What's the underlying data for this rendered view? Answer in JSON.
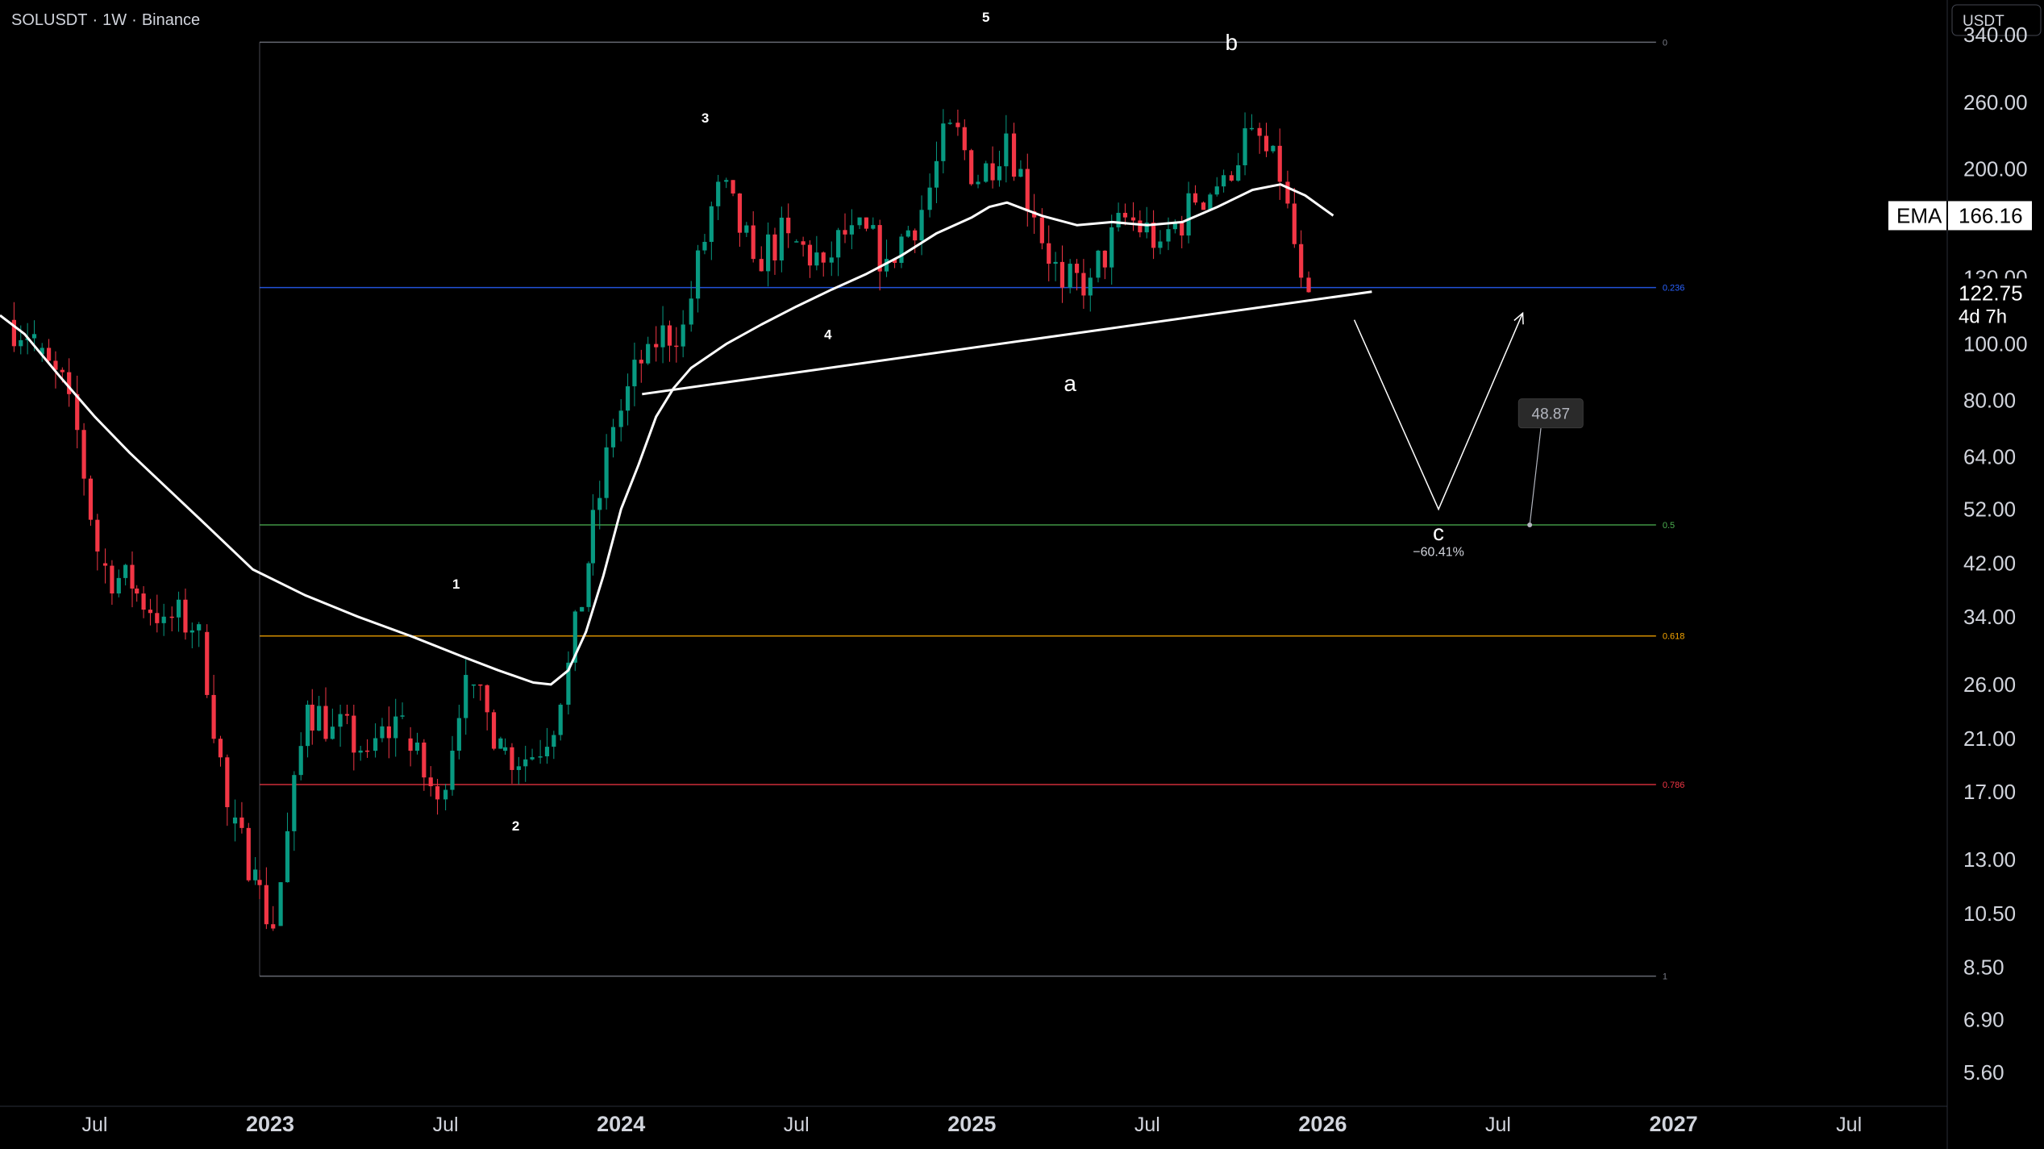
{
  "header": {
    "symbol": "SOLUSDT",
    "interval": "1W",
    "exchange": "Binance",
    "sep": "·"
  },
  "price_axis": {
    "currency": "USDT",
    "ticks": [
      "340.00",
      "260.00",
      "200.00",
      "130.00",
      "100.00",
      "80.00",
      "64.00",
      "52.00",
      "42.00",
      "34.00",
      "26.00",
      "21.00",
      "17.00",
      "13.00",
      "10.50",
      "8.50",
      "6.90",
      "5.60"
    ],
    "tick_values": [
      340,
      260,
      200,
      130,
      100,
      80,
      64,
      52,
      42,
      34,
      26,
      21,
      17,
      13,
      10.5,
      8.5,
      6.9,
      5.6
    ],
    "ema_label": "EMA",
    "ema_value": "166.16",
    "ema_num": 166.16,
    "last_price": "122.75",
    "last_price_num": 122.75,
    "countdown": "4d 7h"
  },
  "time_axis": {
    "labels": [
      {
        "text": "Jul",
        "year": false,
        "t": 2022.5
      },
      {
        "text": "2023",
        "year": true,
        "t": 2023.0
      },
      {
        "text": "Jul",
        "year": false,
        "t": 2023.5
      },
      {
        "text": "2024",
        "year": true,
        "t": 2024.0
      },
      {
        "text": "Jul",
        "year": false,
        "t": 2024.5
      },
      {
        "text": "2025",
        "year": true,
        "t": 2025.0
      },
      {
        "text": "Jul",
        "year": false,
        "t": 2025.5
      },
      {
        "text": "2026",
        "year": true,
        "t": 2026.0
      },
      {
        "text": "Jul",
        "year": false,
        "t": 2026.5
      },
      {
        "text": "2027",
        "year": true,
        "t": 2027.0
      },
      {
        "text": "Jul",
        "year": false,
        "t": 2027.5
      }
    ]
  },
  "chart_data": {
    "type": "candlestick",
    "title": "SOLUSDT · 1W · Binance",
    "scale": "log",
    "ylim": [
      4.9,
      390
    ],
    "xlim": [
      2022.23,
      2027.78
    ],
    "ohlc_summary": [
      [
        2022.27,
        110,
        118,
        96,
        104
      ],
      [
        2022.35,
        96,
        102,
        78,
        82
      ],
      [
        2022.45,
        82,
        90,
        40,
        44
      ],
      [
        2022.53,
        42,
        48,
        32,
        38
      ],
      [
        2022.62,
        38,
        46,
        30,
        34
      ],
      [
        2022.72,
        34,
        38,
        30,
        33
      ],
      [
        2022.82,
        32,
        33,
        14.5,
        16
      ],
      [
        2022.9,
        15,
        17,
        10,
        12.5
      ],
      [
        2022.97,
        12,
        13.5,
        8.3,
        9.9
      ],
      [
        2023.03,
        10,
        26,
        10,
        24
      ],
      [
        2023.12,
        24,
        27,
        18,
        22
      ],
      [
        2023.2,
        22,
        24,
        17,
        20
      ],
      [
        2023.3,
        20,
        25,
        17,
        23
      ],
      [
        2023.4,
        21,
        23,
        15,
        16.5
      ],
      [
        2023.5,
        16.5,
        30,
        15,
        27
      ],
      [
        2023.58,
        26,
        26,
        19,
        21
      ],
      [
        2023.67,
        20,
        21,
        17.5,
        19.5
      ],
      [
        2023.77,
        19.5,
        26,
        19,
        24
      ],
      [
        2023.85,
        24,
        45,
        23,
        42
      ],
      [
        2023.92,
        42,
        75,
        40,
        72
      ],
      [
        2024.0,
        72,
        120,
        68,
        100
      ],
      [
        2024.1,
        100,
        120,
        85,
        108
      ],
      [
        2024.2,
        108,
        205,
        105,
        190
      ],
      [
        2024.3,
        190,
        200,
        130,
        140
      ],
      [
        2024.4,
        140,
        180,
        125,
        155
      ],
      [
        2024.5,
        150,
        170,
        128,
        138
      ],
      [
        2024.6,
        138,
        190,
        125,
        160
      ],
      [
        2024.68,
        160,
        165,
        120,
        140
      ],
      [
        2024.78,
        140,
        180,
        135,
        170
      ],
      [
        2024.88,
        170,
        260,
        165,
        240
      ],
      [
        2024.96,
        240,
        260,
        185,
        190
      ],
      [
        2025.04,
        190,
        295,
        185,
        230
      ],
      [
        2025.12,
        230,
        240,
        150,
        165
      ],
      [
        2025.2,
        165,
        175,
        115,
        125
      ],
      [
        2025.28,
        125,
        140,
        95,
        130
      ],
      [
        2025.36,
        130,
        175,
        125,
        165
      ],
      [
        2025.46,
        165,
        185,
        140,
        150
      ],
      [
        2025.56,
        150,
        190,
        145,
        175
      ],
      [
        2025.66,
        175,
        205,
        170,
        195
      ],
      [
        2025.74,
        195,
        250,
        190,
        235
      ],
      [
        2025.82,
        235,
        240,
        175,
        190
      ],
      [
        2025.9,
        190,
        200,
        125,
        130
      ],
      [
        2025.96,
        130,
        140,
        118,
        122.75
      ]
    ],
    "ema": {
      "name": "EMA",
      "points": [
        [
          2022.23,
          112
        ],
        [
          2022.3,
          104
        ],
        [
          2022.4,
          88
        ],
        [
          2022.5,
          75
        ],
        [
          2022.6,
          65
        ],
        [
          2022.7,
          57
        ],
        [
          2022.8,
          50
        ],
        [
          2022.95,
          41
        ],
        [
          2023.1,
          37
        ],
        [
          2023.25,
          34
        ],
        [
          2023.4,
          31.5
        ],
        [
          2023.55,
          29
        ],
        [
          2023.65,
          27.5
        ],
        [
          2023.75,
          26.2
        ],
        [
          2023.8,
          26
        ],
        [
          2023.85,
          27.5
        ],
        [
          2023.9,
          32
        ],
        [
          2023.95,
          40
        ],
        [
          2024.0,
          52
        ],
        [
          2024.05,
          62
        ],
        [
          2024.1,
          75
        ],
        [
          2024.15,
          84
        ],
        [
          2024.2,
          91
        ],
        [
          2024.3,
          100
        ],
        [
          2024.4,
          108
        ],
        [
          2024.5,
          116
        ],
        [
          2024.6,
          124
        ],
        [
          2024.7,
          132
        ],
        [
          2024.8,
          142
        ],
        [
          2024.9,
          155
        ],
        [
          2025.0,
          165
        ],
        [
          2025.05,
          172
        ],
        [
          2025.1,
          175
        ],
        [
          2025.2,
          166
        ],
        [
          2025.3,
          160
        ],
        [
          2025.4,
          162
        ],
        [
          2025.5,
          160
        ],
        [
          2025.6,
          162
        ],
        [
          2025.7,
          172
        ],
        [
          2025.8,
          184
        ],
        [
          2025.88,
          188
        ],
        [
          2025.95,
          180
        ],
        [
          2026.03,
          166.16
        ]
      ]
    },
    "fib_levels": [
      {
        "label": "0",
        "value": 330,
        "color": "#787b86"
      },
      {
        "label": "0.236",
        "value": 125,
        "color": "#2962ff"
      },
      {
        "label": "0.5",
        "value": 48.87,
        "color": "#4caf50"
      },
      {
        "label": "0.618",
        "value": 31.5,
        "color": "#f7a600"
      },
      {
        "label": "0.786",
        "value": 17.5,
        "color": "#f23645"
      },
      {
        "label": "1",
        "value": 8.2,
        "color": "#787b86"
      }
    ],
    "fib_x_range": [
      2022.97,
      2026.95
    ],
    "trendline": [
      [
        2024.06,
        82
      ],
      [
        2026.14,
        123
      ]
    ],
    "wave_labels": [
      {
        "text": "1",
        "t": 2023.53,
        "v": 38,
        "small": true
      },
      {
        "text": "2",
        "t": 2023.7,
        "v": 14.6,
        "small": true
      },
      {
        "text": "3",
        "t": 2024.24,
        "v": 240,
        "small": true
      },
      {
        "text": "4",
        "t": 2024.59,
        "v": 102,
        "small": true
      },
      {
        "text": "5",
        "t": 2025.04,
        "v": 358,
        "small": true
      },
      {
        "text": "a",
        "t": 2025.28,
        "v": 83,
        "small": false
      },
      {
        "text": "b",
        "t": 2025.74,
        "v": 320,
        "small": false
      },
      {
        "text": "c",
        "t": 2026.33,
        "v": 46,
        "small": false
      }
    ],
    "projection": [
      [
        2026.09,
        110
      ],
      [
        2026.33,
        52
      ],
      [
        2026.57,
        113
      ]
    ],
    "projection_change": "−60.41%",
    "target_callout": {
      "value": "48.87",
      "anchor": [
        2026.59,
        48.87
      ],
      "box": [
        2026.65,
        76
      ]
    }
  },
  "colors": {
    "up": "#089981",
    "down": "#f23645",
    "ema": "#ffffff",
    "grid": "#1a1a1a",
    "text": "#d1d4dc"
  }
}
